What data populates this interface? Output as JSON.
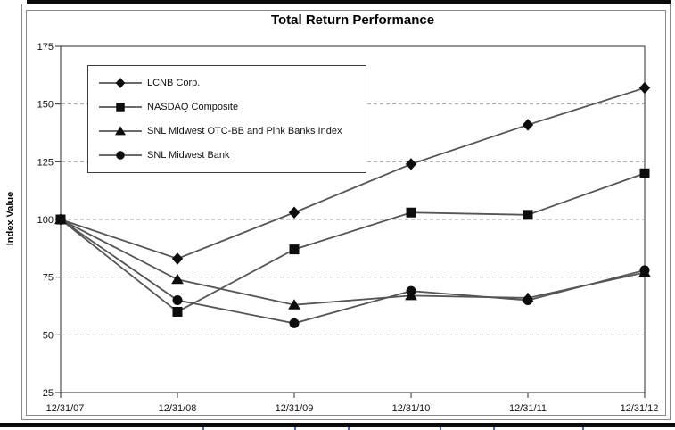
{
  "chart_data": {
    "type": "line",
    "title": "Total Return Performance",
    "ylabel": "Index Value",
    "xlabel": "",
    "categories": [
      "12/31/07",
      "12/31/08",
      "12/31/09",
      "12/31/10",
      "12/31/11",
      "12/31/12"
    ],
    "series": [
      {
        "name": "LCNB Corp.",
        "marker": "diamond",
        "values": [
          100,
          83,
          103,
          124,
          141,
          157
        ]
      },
      {
        "name": "NASDAQ Composite",
        "marker": "square",
        "values": [
          100,
          60,
          87,
          103,
          102,
          120
        ]
      },
      {
        "name": "SNL Midwest OTC-BB and Pink Banks Index",
        "marker": "triangle",
        "values": [
          100,
          74,
          63,
          67,
          66,
          77
        ]
      },
      {
        "name": "SNL Midwest Bank",
        "marker": "circle",
        "values": [
          100,
          65,
          55,
          69,
          65,
          78
        ]
      }
    ],
    "ylim": [
      25,
      175
    ],
    "y_ticks": [
      175,
      150,
      125,
      100,
      75,
      50,
      25
    ],
    "grid_values": [
      150,
      125,
      100,
      75,
      50
    ],
    "grid": "horizontal-dashed",
    "legend_position": "upper-left-inside",
    "line_color": "#555555",
    "marker_color": "#0d0d0d"
  },
  "decorations": {
    "top_rule_color": "#0a0a0a",
    "bottom_rule_color": "#0a0a0a",
    "frame_color": "#8a8a8a",
    "bottom_table_tick_color": "#4668c8",
    "bottom_table_tick_xs": [
      227,
      330,
      390,
      493,
      553,
      653
    ]
  }
}
